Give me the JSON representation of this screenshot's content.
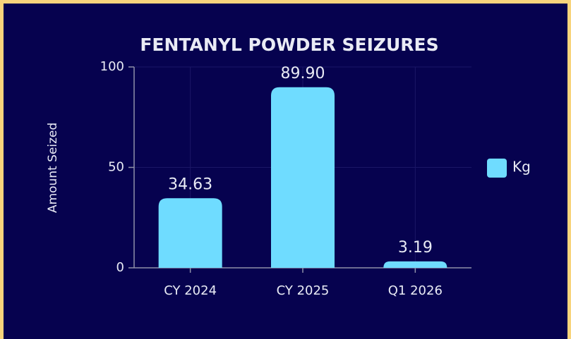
{
  "chart_data": {
    "type": "bar",
    "title": "FENTANYL POWDER SEIZURES",
    "y_label": "Amount Seized",
    "categories": [
      "CY 2024",
      "CY 2025",
      "Q1 2026"
    ],
    "series": [
      {
        "name": "Kg",
        "color": "#6fdcff",
        "values": [
          34.63,
          89.9,
          3.19
        ],
        "value_labels": [
          "34.63",
          "89.90",
          "3.19"
        ]
      }
    ],
    "ylim": [
      0,
      100
    ],
    "yticks": [
      0,
      50,
      100
    ],
    "grid": true,
    "legend": "right"
  }
}
